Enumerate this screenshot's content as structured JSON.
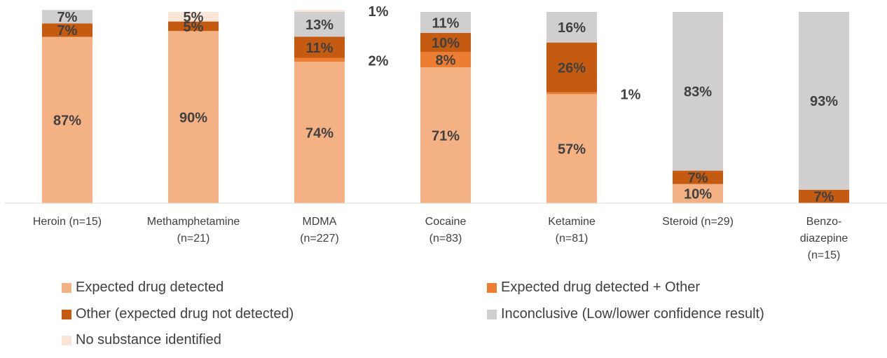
{
  "chart_data": {
    "type": "stacked_bar",
    "categories": [
      "Heroin (n=15)",
      "Methamphetamine\n(n=21)",
      "MDMA\n(n=227)",
      "Cocaine\n(n=83)",
      "Ketamine\n(n=81)",
      "Steroid (n=29)",
      "Benzo-\ndiazepine\n(n=15)"
    ],
    "ylim": [
      0,
      100
    ],
    "series": [
      {
        "name": "Expected drug detected",
        "color": "#F4B183",
        "values": [
          87,
          90,
          74,
          71,
          57,
          10,
          0
        ],
        "value_labels": [
          "87%",
          "90%",
          "74%",
          "71%",
          "57%",
          "10%",
          null
        ]
      },
      {
        "name": "Expected drug detected + Other",
        "color": "#ED7D31",
        "values": [
          0,
          0,
          2,
          8,
          1,
          0,
          0
        ],
        "value_labels": [
          null,
          null,
          "2%",
          "8%",
          "1%",
          null,
          null
        ]
      },
      {
        "name": "Other (expected drug not detected)",
        "color": "#C55A11",
        "values": [
          7,
          5,
          11,
          10,
          26,
          7,
          7
        ],
        "value_labels": [
          "7%",
          "5%",
          "11%",
          "10%",
          "26%",
          "7%",
          "7%"
        ]
      },
      {
        "name": "Inconclusive (Low/lower confidence result)",
        "color": "#D0CECE",
        "values": [
          7,
          0,
          13,
          11,
          16,
          83,
          93
        ],
        "value_labels": [
          "7%",
          null,
          "13%",
          "11%",
          "16%",
          "83%",
          "93%"
        ]
      },
      {
        "name": "No substance identified",
        "color": "#FBE5D6",
        "values": [
          0,
          5,
          1,
          0,
          0,
          0,
          0
        ],
        "value_labels": [
          null,
          "5%",
          "1%",
          null,
          null,
          null,
          null
        ]
      }
    ]
  }
}
